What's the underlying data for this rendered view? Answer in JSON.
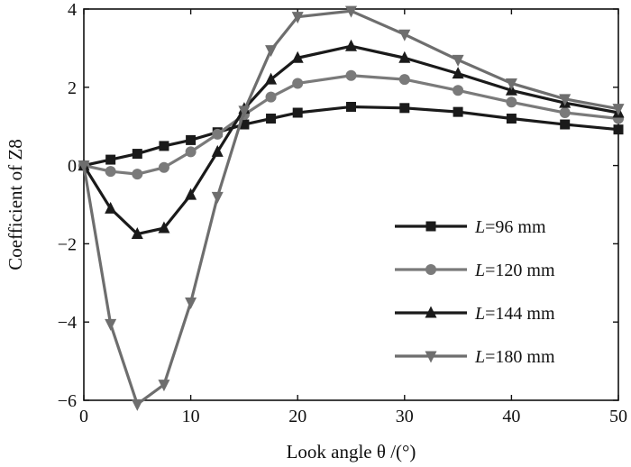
{
  "chart_data": {
    "type": "line",
    "xlabel": "Look angle  θ /(°)",
    "ylabel": "Coefficient of Z8",
    "xlim": [
      0,
      50
    ],
    "ylim": [
      -6,
      4
    ],
    "x_ticks": [
      0,
      10,
      20,
      30,
      40,
      50
    ],
    "y_ticks": [
      -6,
      -4,
      -2,
      0,
      2,
      4
    ],
    "x_tick_labels": [
      "0",
      "10",
      "20",
      "30",
      "40",
      "50"
    ],
    "y_tick_labels": [
      "−6",
      "−4",
      "−2",
      "0",
      "2",
      "4"
    ],
    "grid": false,
    "legend_position": "lower-right",
    "series": [
      {
        "name": "L=96 mm",
        "legend_var": "L",
        "legend_rest": "=96 mm",
        "marker": "square",
        "color": "#1a1a1a",
        "x": [
          0,
          2.5,
          5,
          7.5,
          10,
          12.5,
          15,
          17.5,
          20,
          25,
          30,
          35,
          40,
          45,
          50
        ],
        "y": [
          0.0,
          0.15,
          0.3,
          0.5,
          0.65,
          0.85,
          1.05,
          1.2,
          1.35,
          1.5,
          1.47,
          1.37,
          1.2,
          1.05,
          0.92
        ]
      },
      {
        "name": "L=120 mm",
        "legend_var": "L",
        "legend_rest": "=120 mm",
        "marker": "circle",
        "color": "#7a7a7a",
        "x": [
          0,
          2.5,
          5,
          7.5,
          10,
          12.5,
          15,
          17.5,
          20,
          25,
          30,
          35,
          40,
          45,
          50
        ],
        "y": [
          0.0,
          -0.15,
          -0.22,
          -0.05,
          0.35,
          0.8,
          1.3,
          1.75,
          2.1,
          2.3,
          2.2,
          1.92,
          1.62,
          1.35,
          1.2
        ]
      },
      {
        "name": "L=144 mm",
        "legend_var": "L",
        "legend_rest": "=144 mm",
        "marker": "triangle-up",
        "color": "#1a1a1a",
        "x": [
          0,
          2.5,
          5,
          7.5,
          10,
          12.5,
          15,
          17.5,
          20,
          25,
          30,
          35,
          40,
          45,
          50
        ],
        "y": [
          0.0,
          -1.1,
          -1.75,
          -1.6,
          -0.75,
          0.35,
          1.45,
          2.2,
          2.75,
          3.05,
          2.75,
          2.35,
          1.92,
          1.6,
          1.35
        ]
      },
      {
        "name": "L=180 mm",
        "legend_var": "L",
        "legend_rest": "=180 mm",
        "marker": "triangle-down",
        "color": "#6e6e6e",
        "x": [
          0,
          2.5,
          5,
          7.5,
          10,
          12.5,
          15,
          17.5,
          20,
          25,
          30,
          35,
          40,
          45,
          50
        ],
        "y": [
          0.0,
          -4.05,
          -6.1,
          -5.6,
          -3.5,
          -0.8,
          1.4,
          2.95,
          3.8,
          3.95,
          3.35,
          2.7,
          2.1,
          1.7,
          1.45
        ]
      }
    ]
  }
}
